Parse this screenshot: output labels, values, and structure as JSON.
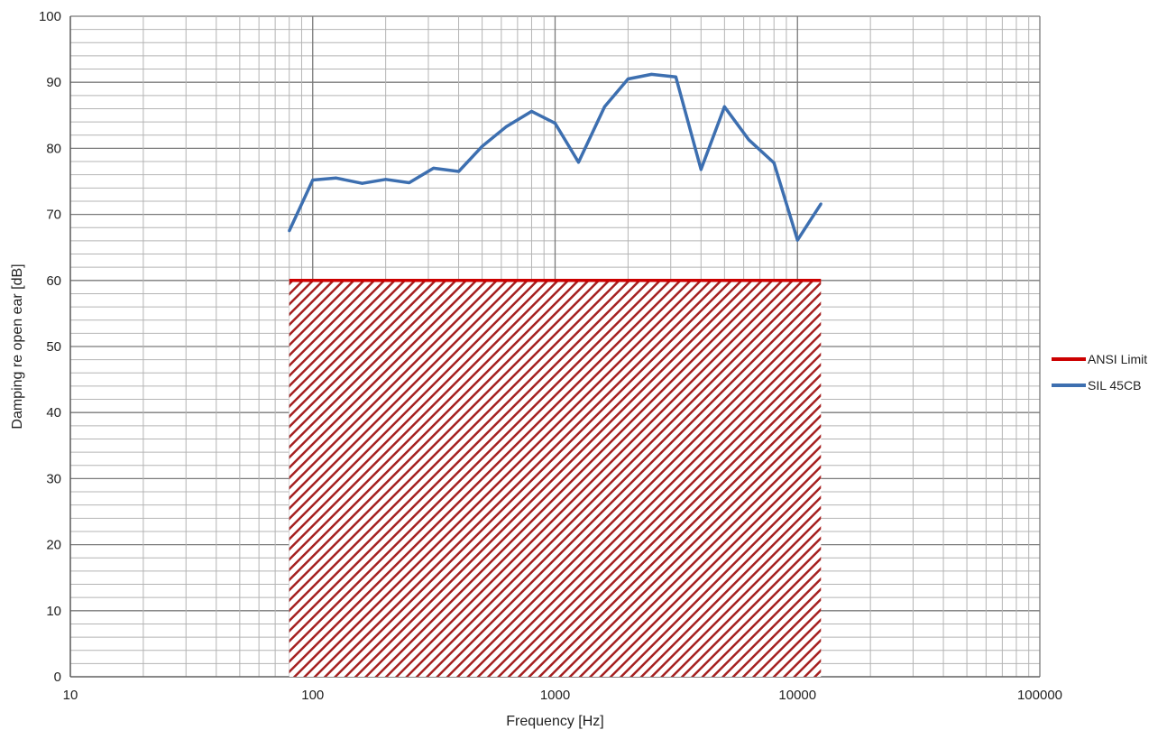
{
  "chart_data": {
    "type": "line",
    "title": "",
    "xlabel": "Frequency [Hz]",
    "ylabel": "Damping re open ear [dB]",
    "x_scale": "log",
    "xlim": [
      10,
      100000
    ],
    "ylim": [
      0,
      100
    ],
    "x_ticks": [
      "10",
      "100",
      "1000",
      "10000",
      "100000"
    ],
    "y_ticks": [
      "0",
      "10",
      "20",
      "30",
      "40",
      "50",
      "60",
      "70",
      "80",
      "90",
      "100"
    ],
    "grid": true,
    "legend_position": "right",
    "series": [
      {
        "name": "ANSI Limit",
        "color": "#cc0000",
        "style": "hatched-area",
        "x": [
          80,
          12500
        ],
        "y": [
          60,
          60
        ]
      },
      {
        "name": "SIL 45CB",
        "color": "#3d6fb0",
        "style": "line",
        "x": [
          80,
          100,
          125,
          160,
          200,
          250,
          315,
          400,
          500,
          630,
          800,
          1000,
          1250,
          1600,
          2000,
          2500,
          3150,
          4000,
          5000,
          6300,
          8000,
          10000,
          12500
        ],
        "y": [
          67.5,
          75.2,
          75.5,
          74.7,
          75.3,
          74.8,
          77.0,
          76.5,
          80.3,
          83.3,
          85.6,
          83.8,
          77.9,
          86.3,
          90.5,
          91.2,
          90.8,
          76.8,
          86.3,
          81.3,
          77.8,
          66.1,
          71.6
        ]
      }
    ]
  }
}
